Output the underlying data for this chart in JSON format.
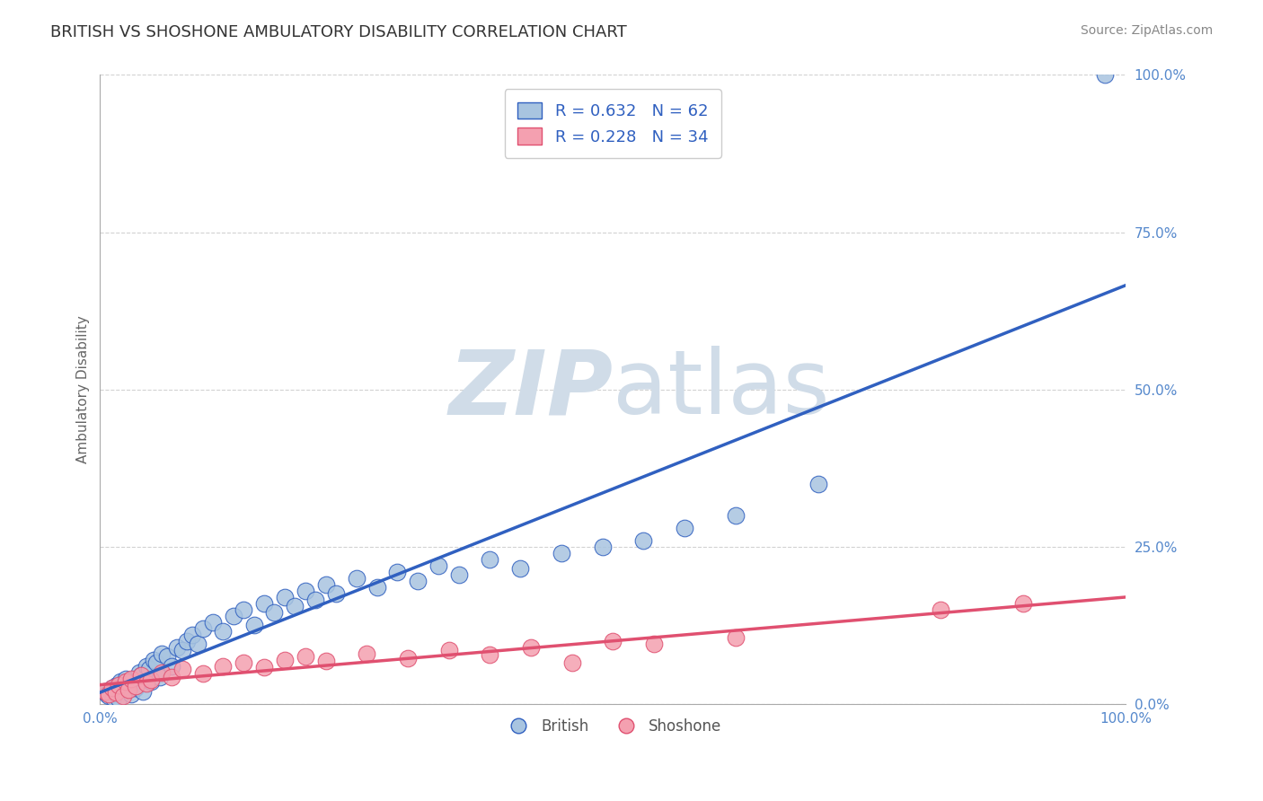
{
  "title": "BRITISH VS SHOSHONE AMBULATORY DISABILITY CORRELATION CHART",
  "source": "Source: ZipAtlas.com",
  "ylabel": "Ambulatory Disability",
  "xlim": [
    0.0,
    1.0
  ],
  "ylim": [
    0.0,
    1.0
  ],
  "x_tick_labels": [
    "0.0%",
    "100.0%"
  ],
  "y_tick_labels": [
    "0.0%",
    "25.0%",
    "50.0%",
    "75.0%",
    "100.0%"
  ],
  "y_tick_positions": [
    0.0,
    0.25,
    0.5,
    0.75,
    1.0
  ],
  "british_R": 0.632,
  "british_N": 62,
  "shoshone_R": 0.228,
  "shoshone_N": 34,
  "british_color": "#a8c4e0",
  "shoshone_color": "#f4a0b0",
  "british_line_color": "#3060c0",
  "shoshone_line_color": "#e05070",
  "legend_text_color": "#3060c0",
  "title_color": "#333333",
  "watermark_color": "#d0dce8",
  "background_color": "#ffffff",
  "british_x": [
    0.005,
    0.007,
    0.008,
    0.01,
    0.012,
    0.013,
    0.014,
    0.016,
    0.018,
    0.02,
    0.022,
    0.025,
    0.028,
    0.03,
    0.032,
    0.035,
    0.038,
    0.04,
    0.042,
    0.045,
    0.048,
    0.05,
    0.052,
    0.055,
    0.058,
    0.06,
    0.065,
    0.07,
    0.075,
    0.08,
    0.085,
    0.09,
    0.095,
    0.1,
    0.11,
    0.12,
    0.13,
    0.14,
    0.15,
    0.16,
    0.17,
    0.18,
    0.19,
    0.2,
    0.21,
    0.22,
    0.23,
    0.25,
    0.27,
    0.29,
    0.31,
    0.33,
    0.35,
    0.38,
    0.41,
    0.45,
    0.49,
    0.53,
    0.57,
    0.62,
    0.7,
    0.98
  ],
  "british_y": [
    0.02,
    0.015,
    0.012,
    0.018,
    0.025,
    0.01,
    0.022,
    0.03,
    0.008,
    0.035,
    0.028,
    0.04,
    0.032,
    0.015,
    0.038,
    0.025,
    0.05,
    0.045,
    0.02,
    0.06,
    0.055,
    0.035,
    0.07,
    0.065,
    0.042,
    0.08,
    0.075,
    0.06,
    0.09,
    0.085,
    0.1,
    0.11,
    0.095,
    0.12,
    0.13,
    0.115,
    0.14,
    0.15,
    0.125,
    0.16,
    0.145,
    0.17,
    0.155,
    0.18,
    0.165,
    0.19,
    0.175,
    0.2,
    0.185,
    0.21,
    0.195,
    0.22,
    0.205,
    0.23,
    0.215,
    0.24,
    0.25,
    0.26,
    0.28,
    0.3,
    0.35,
    1.0
  ],
  "shoshone_x": [
    0.005,
    0.008,
    0.012,
    0.015,
    0.018,
    0.022,
    0.025,
    0.028,
    0.03,
    0.035,
    0.04,
    0.045,
    0.05,
    0.06,
    0.07,
    0.08,
    0.1,
    0.12,
    0.14,
    0.16,
    0.18,
    0.2,
    0.22,
    0.26,
    0.3,
    0.34,
    0.38,
    0.42,
    0.46,
    0.5,
    0.54,
    0.62,
    0.82,
    0.9
  ],
  "shoshone_y": [
    0.02,
    0.015,
    0.025,
    0.018,
    0.03,
    0.012,
    0.035,
    0.022,
    0.04,
    0.028,
    0.045,
    0.032,
    0.038,
    0.05,
    0.042,
    0.055,
    0.048,
    0.06,
    0.065,
    0.058,
    0.07,
    0.075,
    0.068,
    0.08,
    0.072,
    0.085,
    0.078,
    0.09,
    0.065,
    0.1,
    0.095,
    0.105,
    0.15,
    0.16
  ]
}
